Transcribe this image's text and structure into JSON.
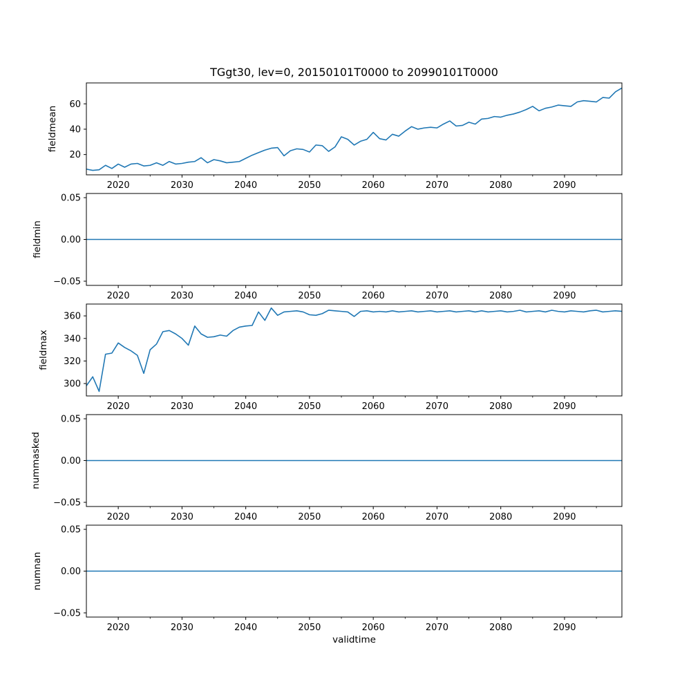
{
  "figure": {
    "background": "#ffffff",
    "spine_color": "#000000",
    "text_color": "#000000"
  },
  "chart_data": {
    "type": "line",
    "title": "TGgt30, lev=0, 20150101T0000 to 20990101T0000",
    "xlabel": "validtime",
    "series_color": "#1f77b4",
    "x": {
      "start_year": 2015,
      "end_year": 2099,
      "step": 1
    },
    "xlim": [
      2015,
      2099
    ],
    "x_major_ticks": [
      2020,
      2030,
      2040,
      2050,
      2060,
      2070,
      2080,
      2090
    ],
    "x_major_tick_labels": [
      "2020",
      "2030",
      "2040",
      "2050",
      "2060",
      "2070",
      "2080",
      "2090"
    ],
    "x_minor_ticks": [
      2025,
      2035,
      2045,
      2055,
      2065,
      2075,
      2085,
      2095
    ],
    "grid": false,
    "legend": false,
    "subplots": [
      {
        "ylabel": "fieldmean",
        "ylim": [
          4,
          76.5
        ],
        "yticks": [
          20,
          40,
          60
        ],
        "ytick_labels": [
          "20",
          "40",
          "60"
        ],
        "values": [
          8.5,
          7.5,
          8,
          11.5,
          9,
          12.5,
          10,
          12.5,
          13,
          11,
          11.5,
          13.5,
          11.5,
          14.5,
          12.5,
          13,
          14,
          14.5,
          17.5,
          13.5,
          16,
          15,
          13.5,
          14,
          14.5,
          17,
          19.5,
          21.5,
          23.5,
          25,
          25.5,
          19,
          23,
          24.5,
          24,
          22,
          27.5,
          27,
          22.5,
          26,
          34,
          32,
          27.5,
          30.5,
          32,
          37.5,
          32.5,
          31.5,
          36,
          34.5,
          38.5,
          42,
          40,
          41,
          41.5,
          41,
          44,
          46.5,
          42.5,
          43,
          45.5,
          44,
          48,
          48.5,
          50,
          49.5,
          51,
          52,
          53.5,
          55.5,
          58,
          54.5,
          56.5,
          57.5,
          59,
          58.5,
          58,
          61.5,
          62.5,
          62,
          61.5,
          65,
          64.5,
          69.5,
          72.5
        ]
      },
      {
        "ylabel": "fieldmin",
        "ylim": [
          -0.055,
          0.055
        ],
        "yticks": [
          0.05,
          0.0,
          -0.05
        ],
        "ytick_labels": [
          "0.05",
          "0.00",
          "−0.05"
        ],
        "constant_value": 0
      },
      {
        "ylabel": "fieldmax",
        "ylim": [
          289,
          370.5
        ],
        "yticks": [
          300,
          320,
          340,
          360
        ],
        "ytick_labels": [
          "300",
          "320",
          "340",
          "360"
        ],
        "values": [
          298,
          306,
          293,
          326,
          327,
          336,
          332,
          329,
          325,
          309,
          330,
          335,
          346,
          347,
          344,
          340,
          334,
          351,
          344,
          341,
          341.5,
          343,
          342,
          347,
          350,
          351,
          351.5,
          363.5,
          356,
          367,
          360.5,
          363.5,
          364,
          364.5,
          363.5,
          361,
          360.5,
          362,
          365,
          364.5,
          364,
          363.5,
          359.5,
          364,
          364.5,
          363.5,
          364,
          363.5,
          364.5,
          363.5,
          364,
          364.5,
          363.5,
          364,
          364.5,
          363.5,
          364,
          364.5,
          363.5,
          364,
          364.5,
          363.5,
          364.5,
          363.5,
          364,
          364.5,
          363.5,
          364,
          365,
          363.5,
          364,
          364.5,
          363.5,
          365,
          364,
          363.5,
          364.5,
          364,
          363.5,
          364.5,
          365,
          363.5,
          364,
          364.5,
          364
        ]
      },
      {
        "ylabel": "nummasked",
        "ylim": [
          -0.055,
          0.055
        ],
        "yticks": [
          0.05,
          0.0,
          -0.05
        ],
        "ytick_labels": [
          "0.05",
          "0.00",
          "−0.05"
        ],
        "constant_value": 0
      },
      {
        "ylabel": "numnan",
        "ylim": [
          -0.055,
          0.055
        ],
        "yticks": [
          0.05,
          0.0,
          -0.05
        ],
        "ytick_labels": [
          "0.05",
          "0.00",
          "−0.05"
        ],
        "constant_value": 0
      }
    ]
  }
}
